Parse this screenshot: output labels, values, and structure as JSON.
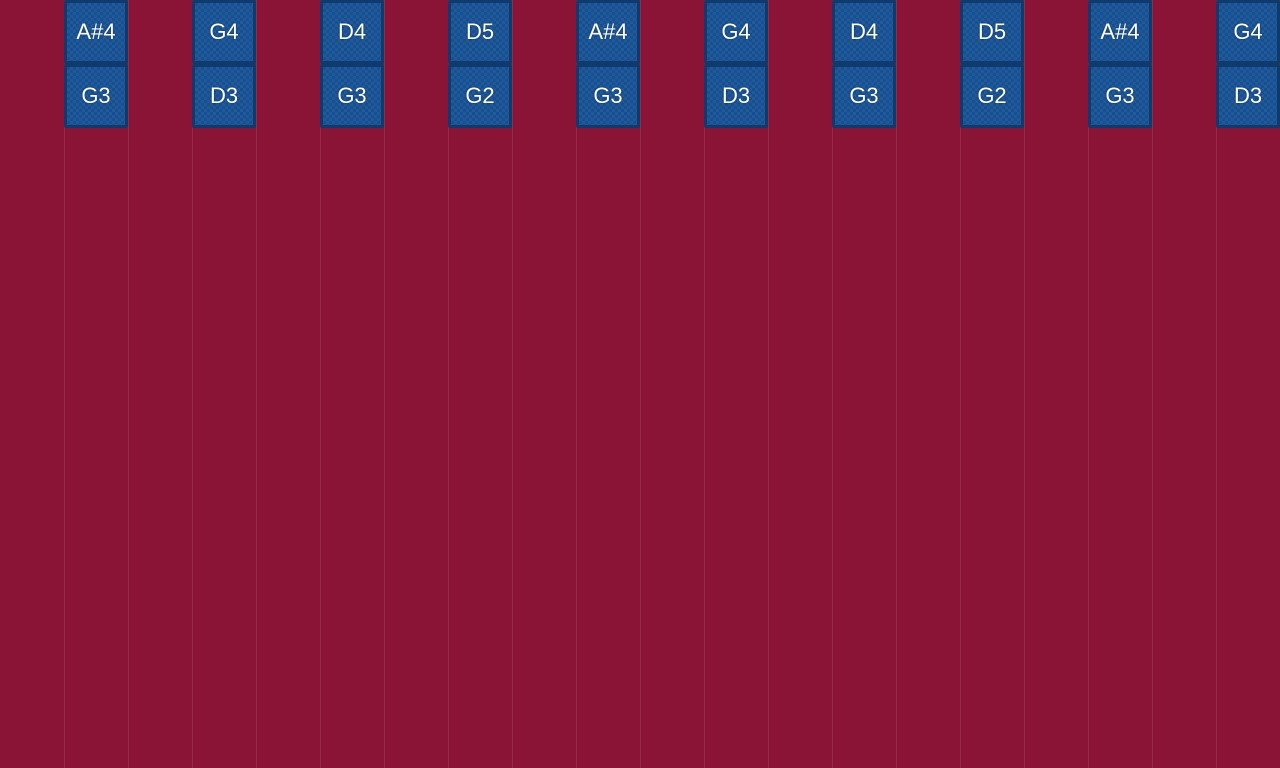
{
  "colors": {
    "background": "#8a1436",
    "column_line": "#a63a5a",
    "tile_fill": "#1a4f8e",
    "tile_border": "#0e3a6e",
    "tile_pattern": "#1e5a9c",
    "tile_text": "#ffffff"
  },
  "columns": 20,
  "note_columns": [
    {
      "column": 1,
      "notes": [
        "A#4",
        "G3"
      ]
    },
    {
      "column": 3,
      "notes": [
        "G4",
        "D3"
      ]
    },
    {
      "column": 5,
      "notes": [
        "D4",
        "G3"
      ]
    },
    {
      "column": 7,
      "notes": [
        "D5",
        "G2"
      ]
    },
    {
      "column": 9,
      "notes": [
        "A#4",
        "G3"
      ]
    },
    {
      "column": 11,
      "notes": [
        "G4",
        "D3"
      ]
    },
    {
      "column": 13,
      "notes": [
        "D4",
        "G3"
      ]
    },
    {
      "column": 15,
      "notes": [
        "D5",
        "G2"
      ]
    },
    {
      "column": 17,
      "notes": [
        "A#4",
        "G3"
      ]
    },
    {
      "column": 19,
      "notes": [
        "G4",
        "D3"
      ]
    }
  ]
}
